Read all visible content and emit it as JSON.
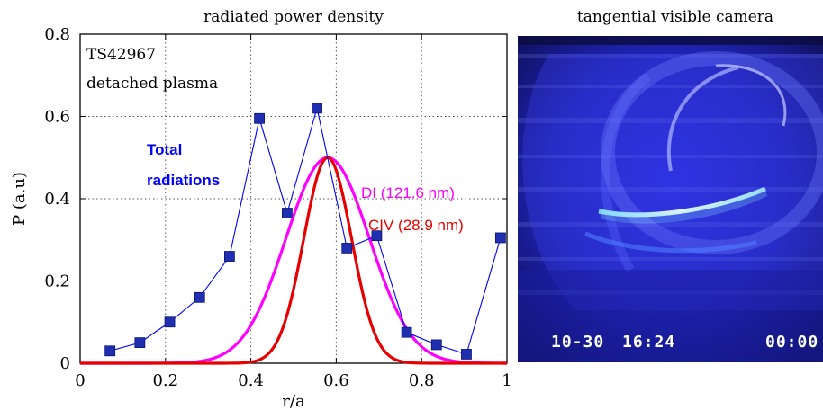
{
  "left_panel": {
    "title": "radiated power density",
    "annotations": {
      "shot": "TS42967",
      "regime": "detached plasma",
      "total_line1": "Total",
      "total_line2": "radiations",
      "di": "DI  (121.6 nm)",
      "civ": "CIV  (28.9 nm)"
    }
  },
  "right_panel": {
    "title": "tangential visible camera",
    "overlay_date": "10-30",
    "overlay_time": "16:24",
    "overlay_counter": "00:00"
  },
  "colors": {
    "total": "#0000ff",
    "marker": "#1f2fb0",
    "di": "#ff00ff",
    "civ": "#e80000"
  },
  "chart_data": {
    "type": "line",
    "xlabel": "r/a",
    "ylabel": "P (a.u)",
    "xlim": [
      0,
      1
    ],
    "ylim": [
      0,
      0.8
    ],
    "xticks": [
      0,
      0.2,
      0.4,
      0.6,
      0.8,
      1
    ],
    "yticks": [
      0,
      0.2,
      0.4,
      0.6,
      0.8
    ],
    "xtick_labels": [
      "0",
      "0.2",
      "0.4",
      "0.6",
      "0.8",
      "1"
    ],
    "ytick_labels": [
      "0",
      "0.2",
      "0.4",
      "0.6",
      "0.8"
    ],
    "grid": true,
    "series": [
      {
        "name": "Total radiations",
        "color": "#0000ff",
        "marker": "square",
        "x": [
          0.07,
          0.14,
          0.21,
          0.28,
          0.35,
          0.42,
          0.485,
          0.555,
          0.625,
          0.695,
          0.765,
          0.835,
          0.905,
          0.985
        ],
        "y": [
          0.03,
          0.05,
          0.1,
          0.16,
          0.26,
          0.595,
          0.365,
          0.62,
          0.28,
          0.31,
          0.075,
          0.045,
          0.022,
          0.305
        ]
      },
      {
        "name": "DI  (121.6 nm)",
        "color": "#ff00ff",
        "gaussian": {
          "center": 0.58,
          "sigma": 0.098,
          "amplitude": 0.5
        },
        "x_range": [
          0,
          1
        ]
      },
      {
        "name": "CIV  (28.9 nm)",
        "color": "#e80000",
        "gaussian": {
          "center": 0.58,
          "sigma": 0.056,
          "amplitude": 0.5
        },
        "x_range": [
          0,
          1
        ]
      }
    ]
  }
}
